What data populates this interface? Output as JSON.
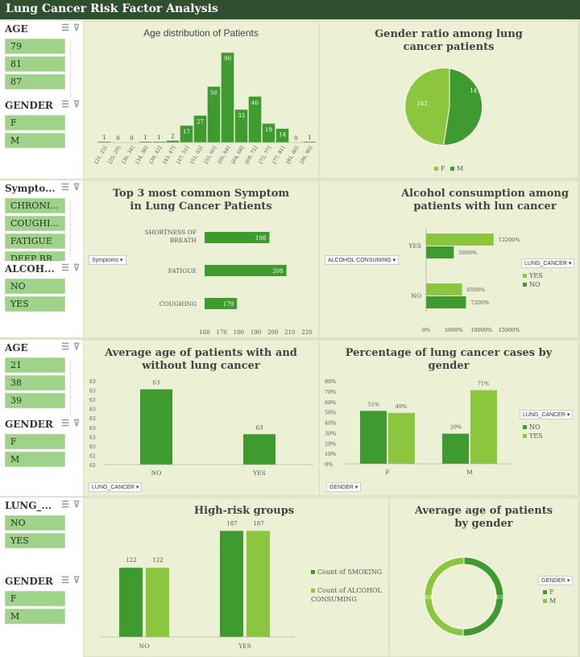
{
  "dashboard": {
    "title": "Lung Cancer Risk Factor Analysis"
  },
  "icons": {
    "multi_select": "multi-select-icon",
    "clear_filter": "clear-filter-icon",
    "filter_dropdown": "filter-dropdown-icon"
  },
  "colors": {
    "dark_green": "#3f9a2f",
    "light_green": "#8cc63f",
    "banner": "#2f4f2f",
    "slicer_item": "#9fd38a"
  },
  "slicers": {
    "s1": {
      "title": "AGE",
      "items": [
        "79",
        "81",
        "87"
      ]
    },
    "s2": {
      "title": "GENDER",
      "items": [
        "F",
        "M"
      ]
    },
    "s3": {
      "title": "Sympto...",
      "items": [
        "CHRONI...",
        "COUGHI...",
        "FATIGUE",
        "DEEP BR..."
      ]
    },
    "s4": {
      "title": "ALCOH...",
      "items": [
        "NO",
        "YES"
      ]
    },
    "s5": {
      "title": "AGE",
      "items": [
        "21",
        "38",
        "39"
      ]
    },
    "s6": {
      "title": "GENDER",
      "items": [
        "F",
        "M"
      ]
    },
    "s7": {
      "title": "LUNG_...",
      "items": [
        "NO",
        "YES"
      ]
    },
    "s8": {
      "title": "GENDER",
      "items": [
        "F",
        "M"
      ]
    }
  },
  "charts": {
    "age_hist": {
      "title": "Age distribution of Patients"
    },
    "gender_ratio": {
      "title": "Gender ratio among lung cancer patients",
      "legend": [
        "F",
        "M"
      ]
    },
    "symptoms": {
      "title": "Top 3 most common Symptom in Lung Cancer Patients",
      "filter_button": "Symptoms"
    },
    "alcohol": {
      "title": "Alcohol consumption among patients with lun cancer",
      "filter_button": "ALCOHOL CONSUMING",
      "legend_title": "LUNG_CANCER",
      "legend": [
        "YES",
        "NO"
      ]
    },
    "avg_age_cancer": {
      "title": "Average age of patients with and without lung cancer",
      "filter_button": "LUNG_CANCER"
    },
    "pct_gender": {
      "title": "Percentage of lung cancer cases by gender",
      "filter_button": "GENDER",
      "legend_title": "LUNG_CANCER",
      "legend": [
        "NO",
        "YES"
      ]
    },
    "high_risk": {
      "title": "High-risk groups",
      "legend": [
        "Count of SMOKING",
        "Count of ALCOHOL CONSUMING"
      ]
    },
    "avg_age_gender": {
      "title": "Average age of patients by gender",
      "legend_title": "GENDER",
      "legend": [
        "F",
        "M"
      ]
    }
  },
  "chart_data": [
    {
      "type": "bar",
      "title": "Age distribution of Patients",
      "categories": [
        "[21, 25]",
        "[25, 29]",
        "[30, 34]",
        "[34, 38]",
        "[38, 42]",
        "[43, 47]",
        "[47, 51]",
        "[51, 55]",
        "[55, 60]",
        "[60, 64]",
        "[64, 68]",
        "[68, 72]",
        "[72, 77]",
        "[77, 81]",
        "[81, 86]",
        "[86, 90]"
      ],
      "values": [
        1,
        0,
        0,
        1,
        1,
        2,
        17,
        27,
        56,
        90,
        33,
        46,
        19,
        14,
        0,
        1
      ],
      "ylim": [
        0,
        95
      ]
    },
    {
      "type": "pie",
      "title": "Gender ratio among lung cancer patients",
      "categories": [
        "F",
        "M"
      ],
      "values": [
        162,
        147
      ]
    },
    {
      "type": "bar",
      "title": "Top 3 most common Symptom in Lung Cancer Patients",
      "orientation": "horizontal",
      "categories": [
        "SHORTNESS OF BREATH",
        "FATIGUE",
        "COUGHING"
      ],
      "values": [
        198,
        208,
        179
      ],
      "xlim": [
        160,
        220
      ],
      "x_ticks": [
        "160",
        "170",
        "180",
        "190",
        "200",
        "210",
        "220"
      ]
    },
    {
      "type": "bar",
      "title": "Alcohol consumption among patients with lun cancer",
      "orientation": "horizontal",
      "categories": [
        "YES",
        "NO"
      ],
      "series": [
        {
          "name": "YES",
          "values": [
            12200,
            6500
          ]
        },
        {
          "name": "NO",
          "values": [
            5000,
            7200
          ]
        }
      ],
      "labels": {
        "YES": [
          "12200%",
          "6500%"
        ],
        "NO": [
          "5000%",
          "7200%"
        ]
      },
      "xlim": [
        0,
        15000
      ],
      "x_ticks": [
        "0%",
        "5000%",
        "10000%",
        "15000%"
      ]
    },
    {
      "type": "bar",
      "title": "Average age of patients with and without lung cancer",
      "categories": [
        "NO",
        "YES"
      ],
      "values": [
        63,
        63
      ],
      "bar_fraction": [
        0.62,
        0.25
      ],
      "y_ticks": [
        "63",
        "63",
        "63",
        "63",
        "63",
        "63",
        "63",
        "63",
        "62",
        "62"
      ]
    },
    {
      "type": "bar",
      "title": "Percentage of lung cancer cases by gender",
      "categories": [
        "F",
        "M"
      ],
      "series": [
        {
          "name": "NO",
          "values": [
            51,
            29
          ]
        },
        {
          "name": "YES",
          "values": [
            49,
            71
          ]
        }
      ],
      "ylim": [
        0,
        80
      ],
      "y_ticks": [
        "0%",
        "10%",
        "20%",
        "30%",
        "40%",
        "50%",
        "60%",
        "70%",
        "80%"
      ]
    },
    {
      "type": "bar",
      "title": "High-risk groups",
      "categories": [
        "NO",
        "YES"
      ],
      "series": [
        {
          "name": "Count of SMOKING",
          "values": [
            122,
            187
          ]
        },
        {
          "name": "Count of ALCOHOL CONSUMING",
          "values": [
            122,
            187
          ]
        }
      ],
      "ylim": [
        0,
        200
      ]
    },
    {
      "type": "pie",
      "title": "Average age of patients by gender",
      "categories": [
        "F",
        "M"
      ],
      "values": [
        63,
        62
      ],
      "donut": true
    }
  ]
}
